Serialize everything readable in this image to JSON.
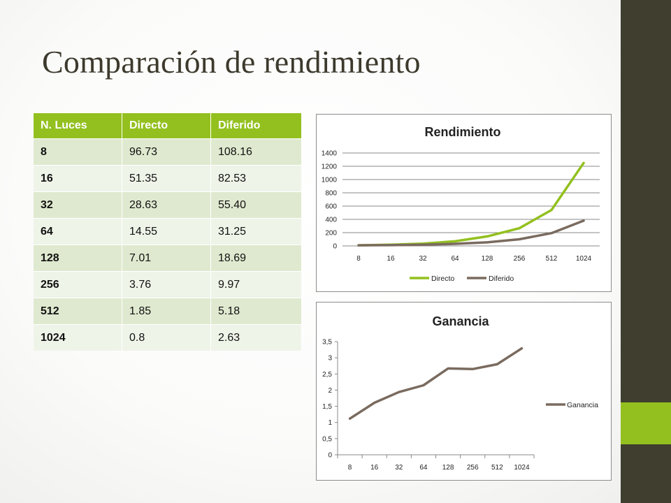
{
  "slide": {
    "title": "Comparación de rendimiento"
  },
  "colors": {
    "accent": "#93c01f",
    "dark": "#3f3e2f",
    "diferido": "#7a6b5f"
  },
  "table": {
    "headers": [
      "N. Luces",
      "Directo",
      "Diferido"
    ],
    "rows": [
      [
        "8",
        "96.73",
        "108.16"
      ],
      [
        "16",
        "51.35",
        "82.53"
      ],
      [
        "32",
        "28.63",
        "55.40"
      ],
      [
        "64",
        "14.55",
        "31.25"
      ],
      [
        "128",
        "7.01",
        "18.69"
      ],
      [
        "256",
        "3.76",
        "9.97"
      ],
      [
        "512",
        "1.85",
        "5.18"
      ],
      [
        "1024",
        "0.8",
        "2.63"
      ]
    ]
  },
  "chart_data": [
    {
      "type": "line",
      "title": "Rendimiento",
      "categories": [
        "8",
        "16",
        "32",
        "64",
        "128",
        "256",
        "512",
        "1024"
      ],
      "series": [
        {
          "name": "Directo",
          "color": "#93c01f",
          "values": [
            10,
            19,
            35,
            69,
            143,
            266,
            541,
            1250
          ]
        },
        {
          "name": "Diferido",
          "color": "#7a6b5f",
          "values": [
            9,
            12,
            18,
            32,
            54,
            100,
            193,
            380
          ]
        }
      ],
      "yticks": [
        "0",
        "200",
        "400",
        "600",
        "800",
        "1000",
        "1200",
        "1400"
      ],
      "ylim": [
        0,
        1400
      ],
      "grid": true,
      "legend": "bottom"
    },
    {
      "type": "line",
      "title": "Ganancia",
      "categories": [
        "8",
        "16",
        "32",
        "64",
        "128",
        "256",
        "512",
        "1024"
      ],
      "series": [
        {
          "name": "Ganancia",
          "color": "#7a6b5f",
          "values": [
            1.12,
            1.61,
            1.94,
            2.15,
            2.67,
            2.65,
            2.8,
            3.29
          ]
        }
      ],
      "yticks": [
        "0",
        "0,5",
        "1",
        "1,5",
        "2",
        "2,5",
        "3",
        "3,5"
      ],
      "ylim": [
        0,
        3.5
      ],
      "grid": false,
      "legend": "right"
    }
  ]
}
